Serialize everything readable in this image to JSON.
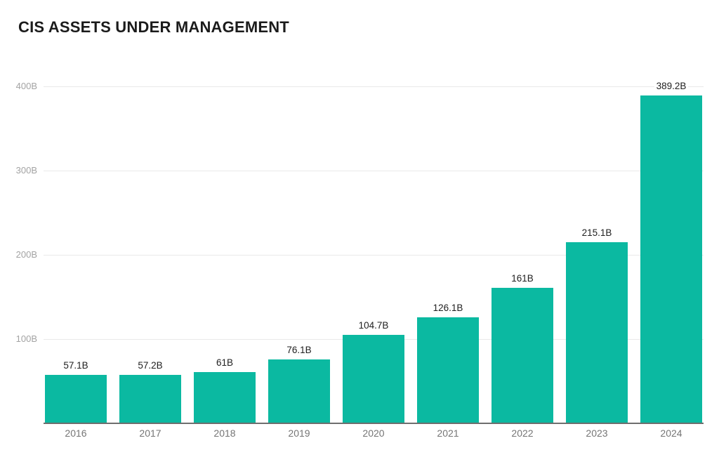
{
  "title": "CIS ASSETS UNDER MANAGEMENT",
  "chart_data": {
    "type": "bar",
    "title": "CIS ASSETS UNDER MANAGEMENT",
    "xlabel": "",
    "ylabel": "",
    "categories": [
      "2016",
      "2017",
      "2018",
      "2019",
      "2020",
      "2021",
      "2022",
      "2023",
      "2024"
    ],
    "values": [
      57.1,
      57.2,
      61,
      76.1,
      104.7,
      126.1,
      161,
      215.1,
      389.2
    ],
    "value_labels": [
      "57.1B",
      "57.2B",
      "61B",
      "76.1B",
      "104.7B",
      "126.1B",
      "161B",
      "215.1B",
      "389.2B"
    ],
    "unit": "B",
    "y_ticks": [
      100,
      200,
      300,
      400
    ],
    "y_tick_labels": [
      "100B",
      "200B",
      "300B",
      "400B"
    ],
    "ylim": [
      0,
      420
    ],
    "grid": true,
    "legend": false,
    "colors": {
      "bar": "#0bb9a1",
      "title_text": "#1b1b1b",
      "value_label_text": "#212121",
      "x_label_text": "#757575",
      "y_tick_text": "#a3a3a3",
      "gridline": "#e9e9e9",
      "axis_line": "#6e6e6e",
      "background": "#ffffff"
    }
  }
}
